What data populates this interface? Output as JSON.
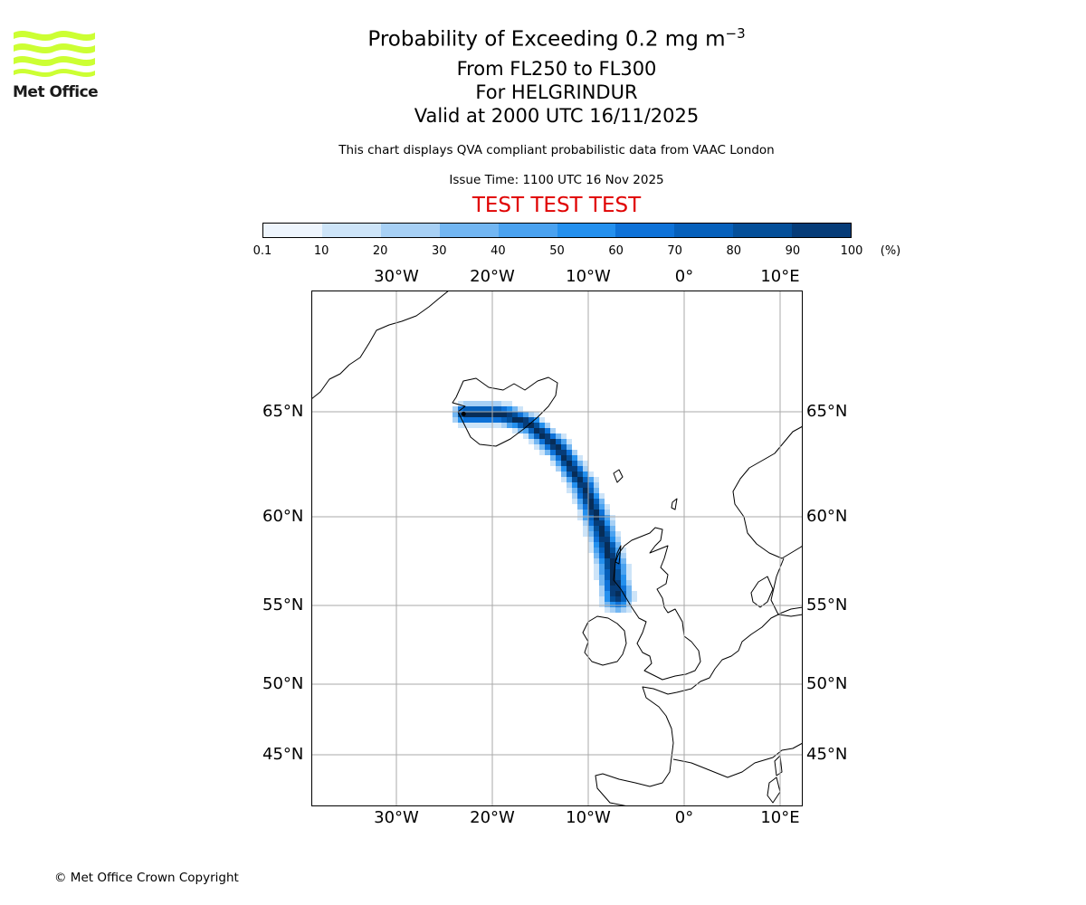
{
  "logo": {
    "text": "Met Office",
    "icon": "met-office-wave-logo",
    "color": "#ccff33"
  },
  "header": {
    "title_main": "Probability of Exceeding 0.2 mg m",
    "title_sup": "−3",
    "line2": "From FL250 to FL300",
    "line3": "For HELGRINDUR",
    "line4": "Valid at 2000 UTC 16/11/2025",
    "note": "This chart displays QVA compliant probabilistic data from VAAC London",
    "issue": "Issue Time: 1100 UTC 16 Nov 2025",
    "test": "TEST TEST TEST"
  },
  "colorbar": {
    "ticks": [
      "0.1",
      "10",
      "20",
      "30",
      "40",
      "50",
      "60",
      "70",
      "80",
      "90",
      "100"
    ],
    "unit": "(%)",
    "colors": [
      "#eef5fd",
      "#cde4f8",
      "#a7d0f5",
      "#72b6f2",
      "#4aa2f0",
      "#2490ee",
      "#0e72d8",
      "#0660bb",
      "#044f99",
      "#063c78",
      "#072d58"
    ]
  },
  "map": {
    "lon_labels": [
      "30°W",
      "20°W",
      "10°W",
      "0°",
      "10°E"
    ],
    "lat_labels": [
      "65°N",
      "60°N",
      "55°N",
      "50°N",
      "45°N"
    ],
    "gridline_color": "#aaaaaa",
    "plume": {
      "source_lon": -23.0,
      "source_lat": 64.9,
      "path": [
        [
          -23.0,
          64.9
        ],
        [
          -19.0,
          64.9
        ],
        [
          -16.0,
          64.4
        ],
        [
          -13.0,
          63.2
        ],
        [
          -10.5,
          61.5
        ],
        [
          -8.8,
          59.5
        ],
        [
          -7.6,
          57.5
        ],
        [
          -7.0,
          55.5
        ]
      ]
    }
  },
  "footer": {
    "copyright": "© Met Office Crown Copyright"
  }
}
